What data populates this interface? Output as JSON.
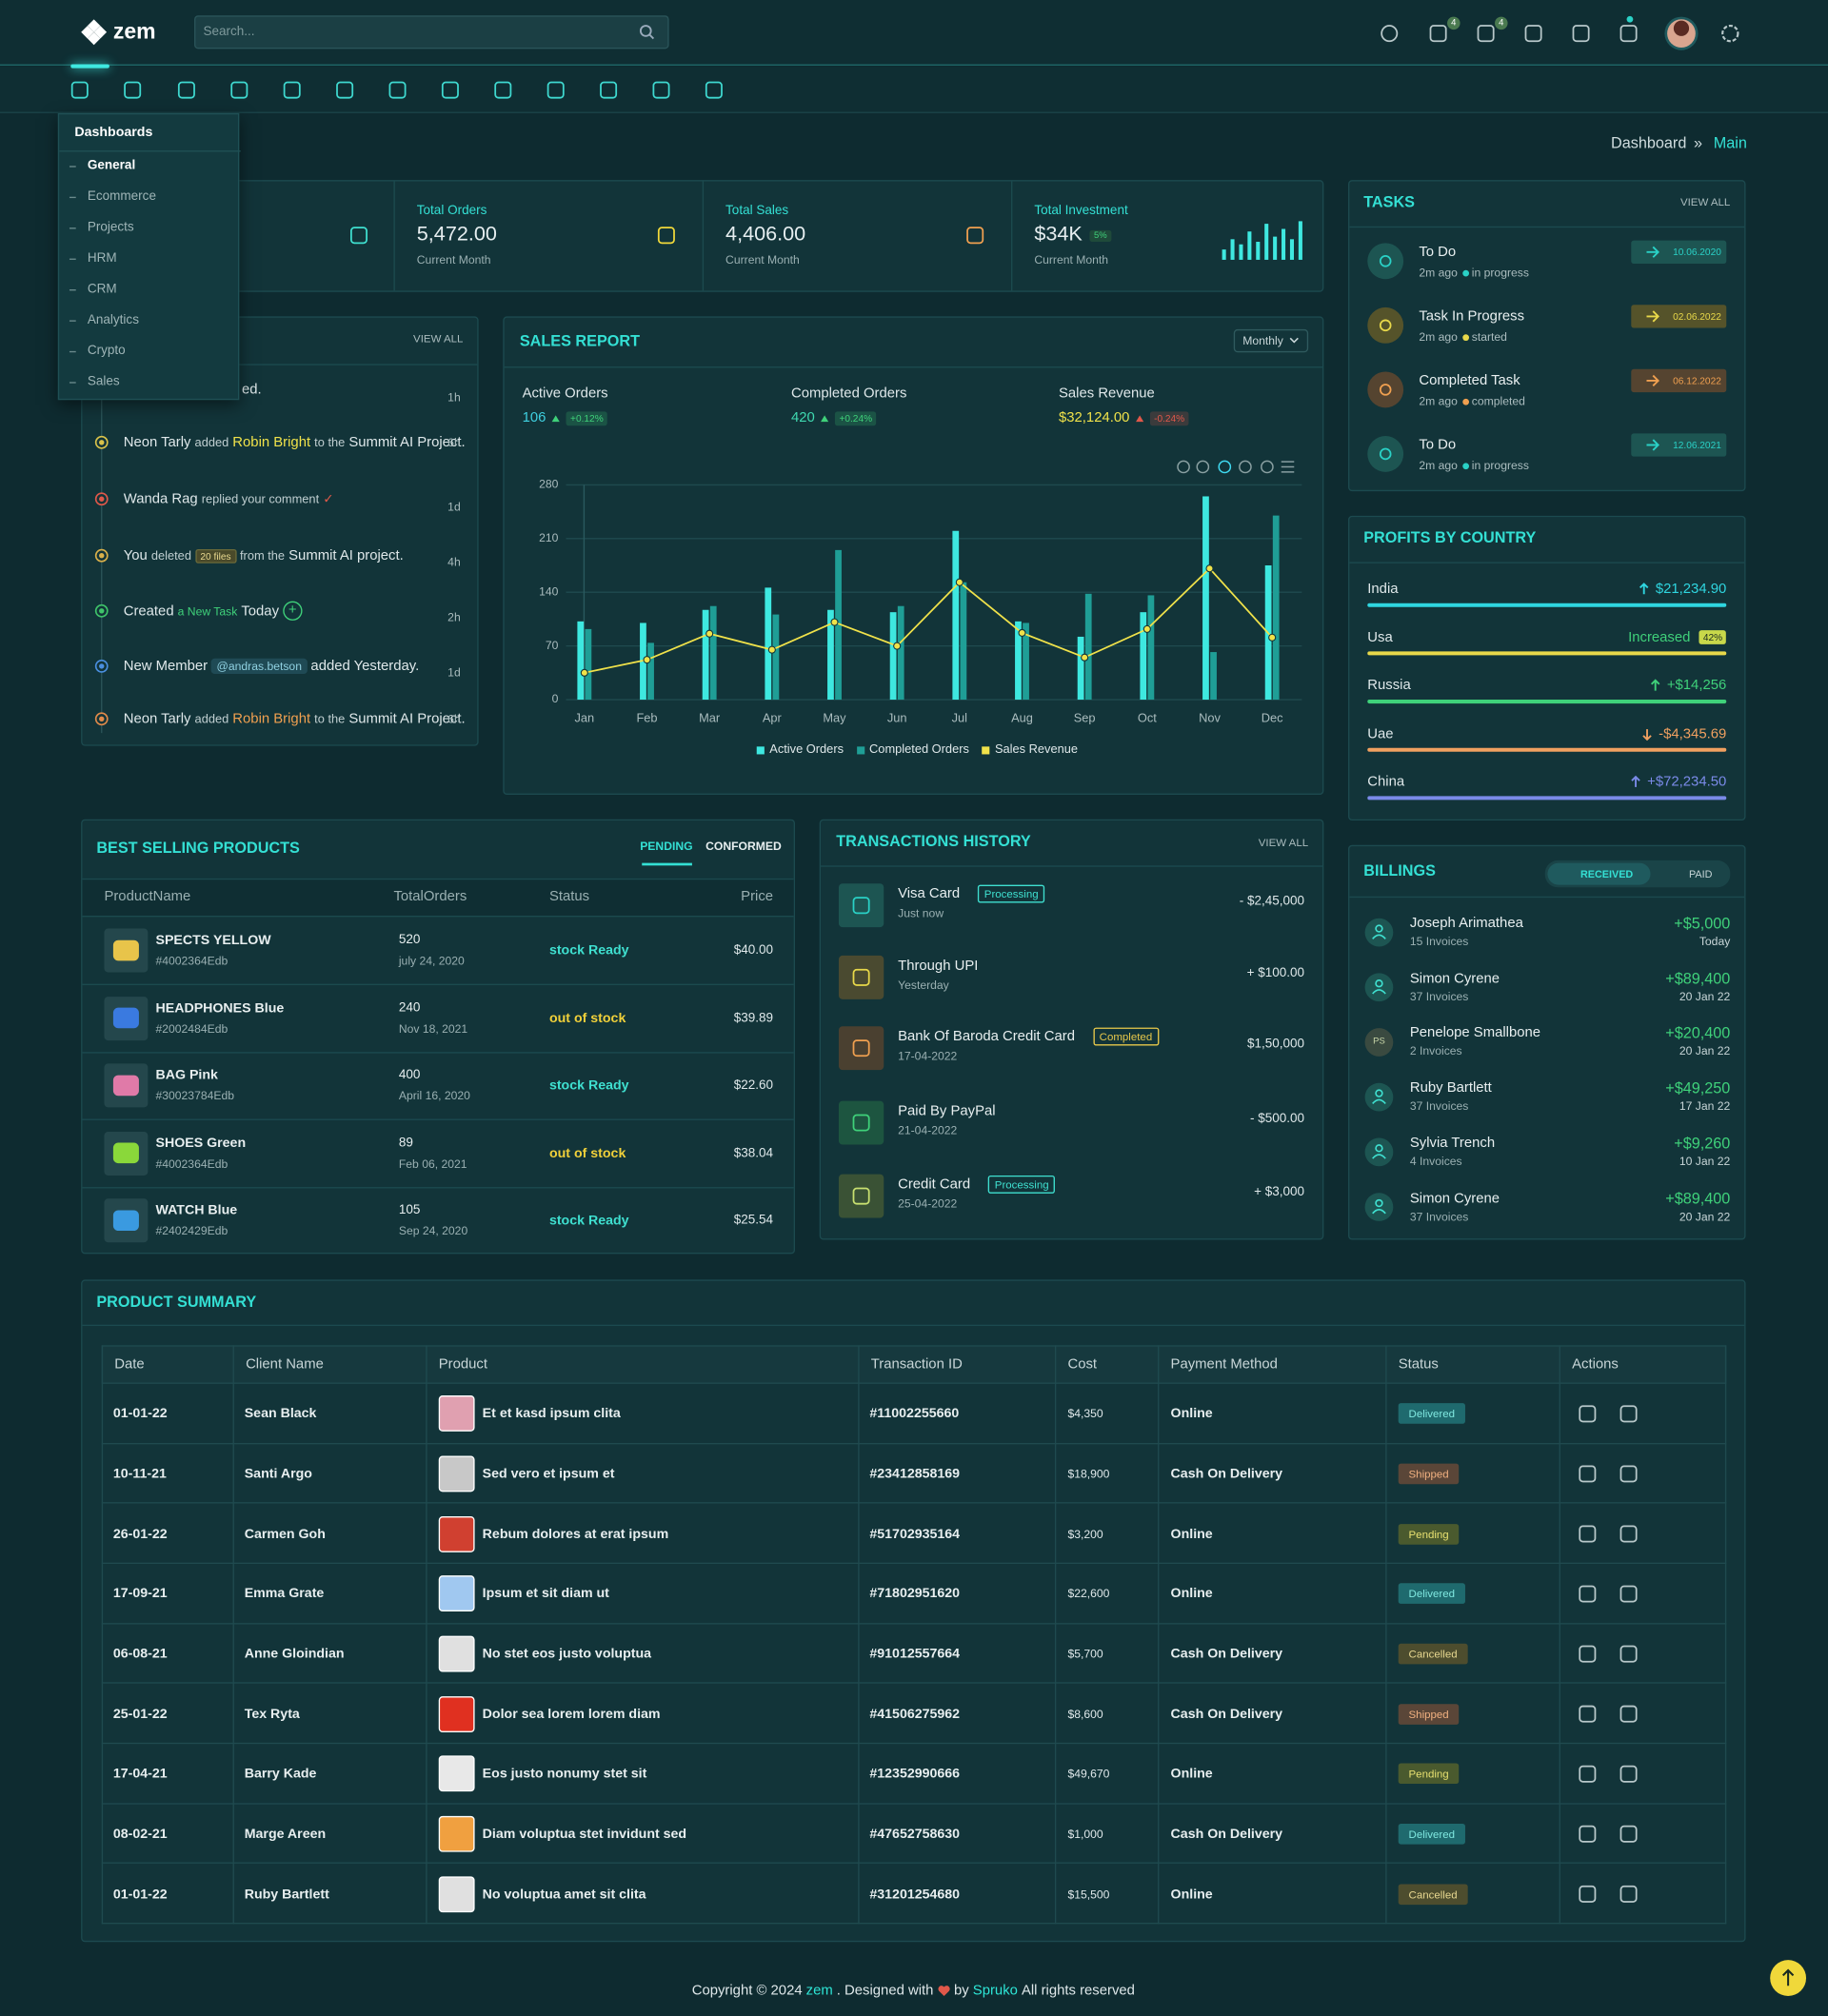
{
  "header": {
    "logo": "zem",
    "search_placeholder": "Search...",
    "cart_badge": 4,
    "mail_badge": 4
  },
  "menu": {
    "title": "Dashboards",
    "items": [
      "General",
      "Ecommerce",
      "Projects",
      "HRM",
      "CRM",
      "Analytics",
      "Crypto",
      "Sales"
    ]
  },
  "breadcrumb": {
    "items": [
      "Dashboard",
      "Main"
    ],
    "separator": "»"
  },
  "stats": [
    {
      "label": "Total Orders",
      "value": "5,472.00",
      "period": "Current Month"
    },
    {
      "label": "Total Sales",
      "value": "4,406.00",
      "period": "Current Month"
    },
    {
      "label": "Total Investment",
      "value": "$34K",
      "badge": "5%",
      "period": "Current Month"
    }
  ],
  "activity": {
    "action": "VIEW ALL",
    "items": [
      {
        "parts": [
          {
            "text": "ed.",
            "style": "normal"
          }
        ],
        "time": "1h",
        "color": "#2ad1c6"
      },
      {
        "parts": [
          {
            "text": "Neon Tarly",
            "style": "normal"
          },
          {
            "text": "added",
            "style": "small"
          },
          {
            "text": "Robin Bright",
            "style": "yellow"
          },
          {
            "text": "to the",
            "style": "small"
          },
          {
            "text": "Summit AI Project.",
            "style": "normal"
          }
        ],
        "time": "6h",
        "color": "#d9c24a"
      },
      {
        "parts": [
          {
            "text": "Wanda Rag",
            "style": "normal"
          },
          {
            "text": "replied your comment",
            "style": "small"
          },
          {
            "text": "✓",
            "style": "check"
          }
        ],
        "time": "1d",
        "color": "#e0584a"
      },
      {
        "parts": [
          {
            "text": "You",
            "style": "normal"
          },
          {
            "text": "deleted",
            "style": "small"
          },
          {
            "text": "20 files",
            "style": "badge"
          },
          {
            "text": "from the",
            "style": "small"
          },
          {
            "text": "Summit AI project.",
            "style": "normal"
          }
        ],
        "time": "4h",
        "color": "#d9b04a"
      },
      {
        "parts": [
          {
            "text": "Created",
            "style": "normal"
          },
          {
            "text": "a New Task",
            "style": "green"
          },
          {
            "text": "Today",
            "style": "normal"
          },
          {
            "text": "+",
            "style": "plus"
          }
        ],
        "time": "2h",
        "color": "#3fc46a"
      },
      {
        "parts": [
          {
            "text": "New Member",
            "style": "normal"
          },
          {
            "text": "@andras.betson",
            "style": "tag"
          },
          {
            "text": "added Yesterday.",
            "style": "normal"
          }
        ],
        "time": "1d",
        "color": "#4a8fe0"
      },
      {
        "parts": [
          {
            "text": "Neon Tarly",
            "style": "normal"
          },
          {
            "text": "added",
            "style": "small"
          },
          {
            "text": "Robin Bright",
            "style": "orange"
          },
          {
            "text": "to the",
            "style": "small"
          },
          {
            "text": "Summit AI Project.",
            "style": "normal"
          }
        ],
        "time": "6h",
        "color": "#e08a4a"
      }
    ]
  },
  "chart_data": {
    "type": "bar",
    "title": "SALES REPORT",
    "period": "Monthly",
    "summary": [
      {
        "label": "Active Orders",
        "value": 106,
        "color": "#3fd0e0",
        "change": "+0.12%",
        "change_color": "#3fd17a"
      },
      {
        "label": "Completed Orders",
        "value": 420,
        "color": "#3fd9b0",
        "change": "+0.24%",
        "change_color": "#3fd17a"
      },
      {
        "label": "Sales Revenue",
        "value": "$32,124.00",
        "color": "#f0e24a",
        "change": "-0.24%",
        "change_color": "#e0584a"
      }
    ],
    "categories": [
      "Jan",
      "Feb",
      "Mar",
      "Apr",
      "May",
      "Jun",
      "Jul",
      "Aug",
      "Sep",
      "Oct",
      "Nov",
      "Dec"
    ],
    "series": [
      {
        "name": "Active Orders",
        "type": "bar",
        "color": "#3ee8e0",
        "values": [
          102,
          100,
          117,
          146,
          117,
          114,
          220,
          102,
          82,
          114,
          265,
          175
        ]
      },
      {
        "name": "Completed Orders",
        "type": "bar",
        "color": "#1f9e96",
        "values": [
          92,
          74,
          122,
          111,
          195,
          122,
          153,
          100,
          138,
          136,
          62,
          240
        ]
      },
      {
        "name": "Sales Revenue",
        "type": "line",
        "color": "#f0e24a",
        "values": [
          35,
          52,
          86,
          65,
          101,
          70,
          153,
          87,
          55,
          92,
          171,
          81
        ]
      }
    ],
    "ylim": [
      0,
      280
    ],
    "yticks": [
      0,
      70,
      140,
      210,
      280
    ],
    "grid": true,
    "legend": "bottom"
  },
  "tasks": {
    "title": "TASKS",
    "action": "VIEW ALL",
    "items": [
      {
        "name": "To Do",
        "time": "2m ago",
        "status": "in progress",
        "date": "10.06.2020",
        "color": "#2ad1c6",
        "bg": "#1d5552"
      },
      {
        "name": "Task In Progress",
        "time": "2m ago",
        "status": "started",
        "date": "02.06.2022",
        "color": "#e8d84a",
        "bg": "#55532a"
      },
      {
        "name": "Completed Task",
        "time": "2m ago",
        "status": "completed",
        "date": "06.12.2022",
        "color": "#f0a050",
        "bg": "#554430"
      },
      {
        "name": "To Do",
        "time": "2m ago",
        "status": "in progress",
        "date": "12.06.2021",
        "color": "#2ad1c6",
        "bg": "#1d5552"
      }
    ]
  },
  "profits": {
    "title": "PROFITS BY COUNTRY",
    "items": [
      {
        "country": "India",
        "value": "$21,234.90",
        "color": "#2fd6e0",
        "trend": "up"
      },
      {
        "country": "Usa",
        "value": "Increased",
        "badge": "42%",
        "color": "#e8d84a",
        "value_color": "#3fd17a"
      },
      {
        "country": "Russia",
        "value": "+$14,256",
        "color": "#3fd17a",
        "trend": "up"
      },
      {
        "country": "Uae",
        "value": "-$4,345.69",
        "color": "#f0a060",
        "trend": "down"
      },
      {
        "country": "China",
        "value": "+$72,234.50",
        "color": "#7a8ae8",
        "trend": "up"
      }
    ]
  },
  "best_selling": {
    "title": "BEST SELLING PRODUCTS",
    "tabs": [
      "PENDING",
      "CONFORMED"
    ],
    "columns": [
      "ProductName",
      "TotalOrders",
      "Status",
      "Price"
    ],
    "status_colors": {
      "stock Ready": "#3fe0d0",
      "out of stock": "#f0d03a"
    },
    "rows": [
      {
        "name": "SPECTS YELLOW",
        "sku": "#4002364Edb",
        "orders": 520,
        "date": "july 24, 2020",
        "status": "stock Ready",
        "price": "$40.00",
        "img": "#e8c44a"
      },
      {
        "name": "HEADPHONES Blue",
        "sku": "#2002484Edb",
        "orders": 240,
        "date": "Nov 18, 2021",
        "status": "out of stock",
        "price": "$39.89",
        "img": "#3a7ae0"
      },
      {
        "name": "BAG Pink",
        "sku": "#30023784Edb",
        "orders": 400,
        "date": "April 16, 2020",
        "status": "stock Ready",
        "price": "$22.60",
        "img": "#e07aa8"
      },
      {
        "name": "SHOES Green",
        "sku": "#4002364Edb",
        "orders": 89,
        "date": "Feb 06, 2021",
        "status": "out of stock",
        "price": "$38.04",
        "img": "#8ad83a"
      },
      {
        "name": "WATCH Blue",
        "sku": "#2402429Edb",
        "orders": 105,
        "date": "Sep 24, 2020",
        "status": "stock Ready",
        "price": "$25.54",
        "img": "#3a9ae0"
      }
    ]
  },
  "transactions": {
    "title": "TRANSACTIONS HISTORY",
    "action": "VIEW ALL",
    "badge_colors": {
      "Processing": "#3fe0d0",
      "Completed": "#e8c84a"
    },
    "items": [
      {
        "name": "Visa Card",
        "badge": "Processing",
        "time": "Just now",
        "amount": "- $2,45,000",
        "color": "#2ad1c6",
        "bg": "#1d5552"
      },
      {
        "name": "Through UPI",
        "time": "Yesterday",
        "amount": "+ $100.00",
        "color": "#e8d84a",
        "bg": "#4a4a30"
      },
      {
        "name": "Bank Of Baroda Credit Card",
        "badge": "Completed",
        "time": "17-04-2022",
        "amount": "$1,50,000",
        "color": "#f0a050",
        "bg": "#4a4030"
      },
      {
        "name": "Paid By PayPal",
        "time": "21-04-2022",
        "amount": "- $500.00",
        "color": "#3fd17a",
        "bg": "#1d5540"
      },
      {
        "name": "Credit Card",
        "badge": "Processing",
        "time": "25-04-2022",
        "amount": "+ $3,000",
        "color": "#c8e070",
        "bg": "#3a5235"
      }
    ]
  },
  "billings": {
    "title": "BILLINGS",
    "tabs": [
      "RECEIVED",
      "PAID"
    ],
    "items": [
      {
        "name": "Joseph Arimathea",
        "invoices": "15 Invoices",
        "amount": "+$5,000",
        "date": "Today"
      },
      {
        "name": "Simon Cyrene",
        "invoices": "37 Invoices",
        "amount": "+$89,400",
        "date": "20 Jan 22"
      },
      {
        "name": "Penelope Smallbone",
        "initials": "PS",
        "invoices": "2 Invoices",
        "amount": "+$20,400",
        "date": "20 Jan 22"
      },
      {
        "name": "Ruby Bartlett",
        "invoices": "37 Invoices",
        "amount": "+$49,250",
        "date": "17 Jan 22"
      },
      {
        "name": "Sylvia Trench",
        "invoices": "4 Invoices",
        "amount": "+$9,260",
        "date": "10 Jan 22"
      },
      {
        "name": "Simon Cyrene",
        "invoices": "37 Invoices",
        "amount": "+$89,400",
        "date": "20 Jan 22"
      }
    ]
  },
  "product_summary": {
    "title": "PRODUCT SUMMARY",
    "columns": [
      "Date",
      "Client Name",
      "Product",
      "Transaction ID",
      "Cost",
      "Payment Method",
      "Status",
      "Actions"
    ],
    "status_styles": {
      "Delivered": {
        "bg": "#1f6a6e",
        "fg": "#7fe8e0"
      },
      "Shipped": {
        "bg": "#5a4638",
        "fg": "#f0b080"
      },
      "Pending": {
        "bg": "#4a5a2e",
        "fg": "#e8e070"
      },
      "Cancelled": {
        "bg": "#4d4d2e",
        "fg": "#e8d890"
      }
    },
    "rows": [
      [
        "01-01-22",
        "Sean Black",
        "Et et kasd ipsum clita",
        "#11002255660",
        "$4,350",
        "Online",
        "Delivered"
      ],
      [
        "10-11-21",
        "Santi Argo",
        "Sed vero et ipsum et",
        "#23412858169",
        "$18,900",
        "Cash On Delivery",
        "Shipped"
      ],
      [
        "26-01-22",
        "Carmen Goh",
        "Rebum dolores at erat ipsum",
        "#51702935164",
        "$3,200",
        "Online",
        "Pending"
      ],
      [
        "17-09-21",
        "Emma Grate",
        "Ipsum et sit diam ut",
        "#71802951620",
        "$22,600",
        "Online",
        "Delivered"
      ],
      [
        "06-08-21",
        "Anne Gloindian",
        "No stet eos justo voluptua",
        "#91012557664",
        "$5,700",
        "Cash On Delivery",
        "Cancelled"
      ],
      [
        "25-01-22",
        "Tex Ryta",
        "Dolor sea lorem lorem diam",
        "#41506275962",
        "$8,600",
        "Cash On Delivery",
        "Shipped"
      ],
      [
        "17-04-21",
        "Barry Kade",
        "Eos justo nonumy stet sit",
        "#12352990666",
        "$49,670",
        "Online",
        "Pending"
      ],
      [
        "08-02-21",
        "Marge Areen",
        "Diam voluptua stet invidunt sed",
        "#47652758630",
        "$1,000",
        "Cash On Delivery",
        "Delivered"
      ],
      [
        "01-01-22",
        "Ruby Bartlett",
        "No voluptua amet sit clita",
        "#31201254680",
        "$15,500",
        "Online",
        "Cancelled"
      ]
    ]
  },
  "footer": {
    "accent": "#2ee6d6",
    "parts": [
      {
        "text": "Copyright © 2024"
      },
      {
        "text": "zem",
        "accent": true
      },
      {
        "text": ". Designed with"
      },
      {
        "text": "by"
      },
      {
        "text": "Spruko",
        "accent": true
      },
      {
        "text": "All rights reserved"
      }
    ]
  }
}
